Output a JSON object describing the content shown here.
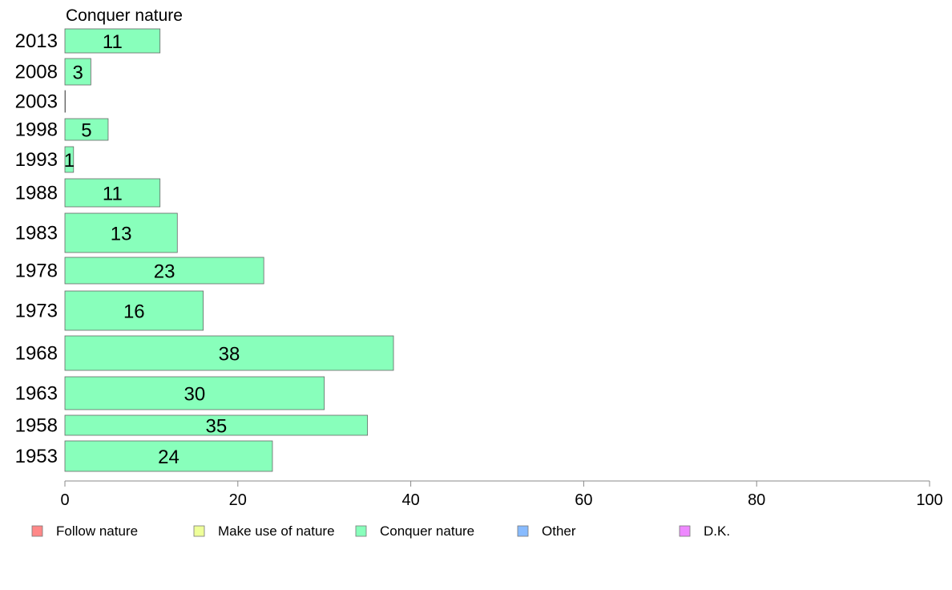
{
  "chart_data": {
    "type": "bar",
    "orientation": "horizontal",
    "title": "Conquer nature",
    "categories": [
      "2013",
      "2008",
      "2003",
      "1998",
      "1993",
      "1988",
      "1983",
      "1978",
      "1973",
      "1968",
      "1963",
      "1958",
      "1953"
    ],
    "series": [
      {
        "name": "Conquer nature",
        "color": "#88ffbb",
        "values": [
          11,
          3,
          0,
          5,
          1,
          11,
          13,
          23,
          16,
          38,
          30,
          35,
          24
        ],
        "labels": [
          "11",
          "3",
          "",
          "5",
          "1",
          "11",
          "13",
          "23",
          "16",
          "38",
          "30",
          "35",
          "24"
        ]
      }
    ],
    "xlim": [
      0,
      100
    ],
    "xticks": [
      0,
      20,
      40,
      60,
      80,
      100
    ],
    "grid": false,
    "legend_position": "bottom",
    "legend": [
      {
        "label": "Follow nature",
        "color": "#ff8888"
      },
      {
        "label": "Make use of nature",
        "color": "#eeff99"
      },
      {
        "label": "Conquer nature",
        "color": "#88ffbb"
      },
      {
        "label": "Other",
        "color": "#88bbff"
      },
      {
        "label": "D.K.",
        "color": "#ee88ff"
      }
    ]
  }
}
